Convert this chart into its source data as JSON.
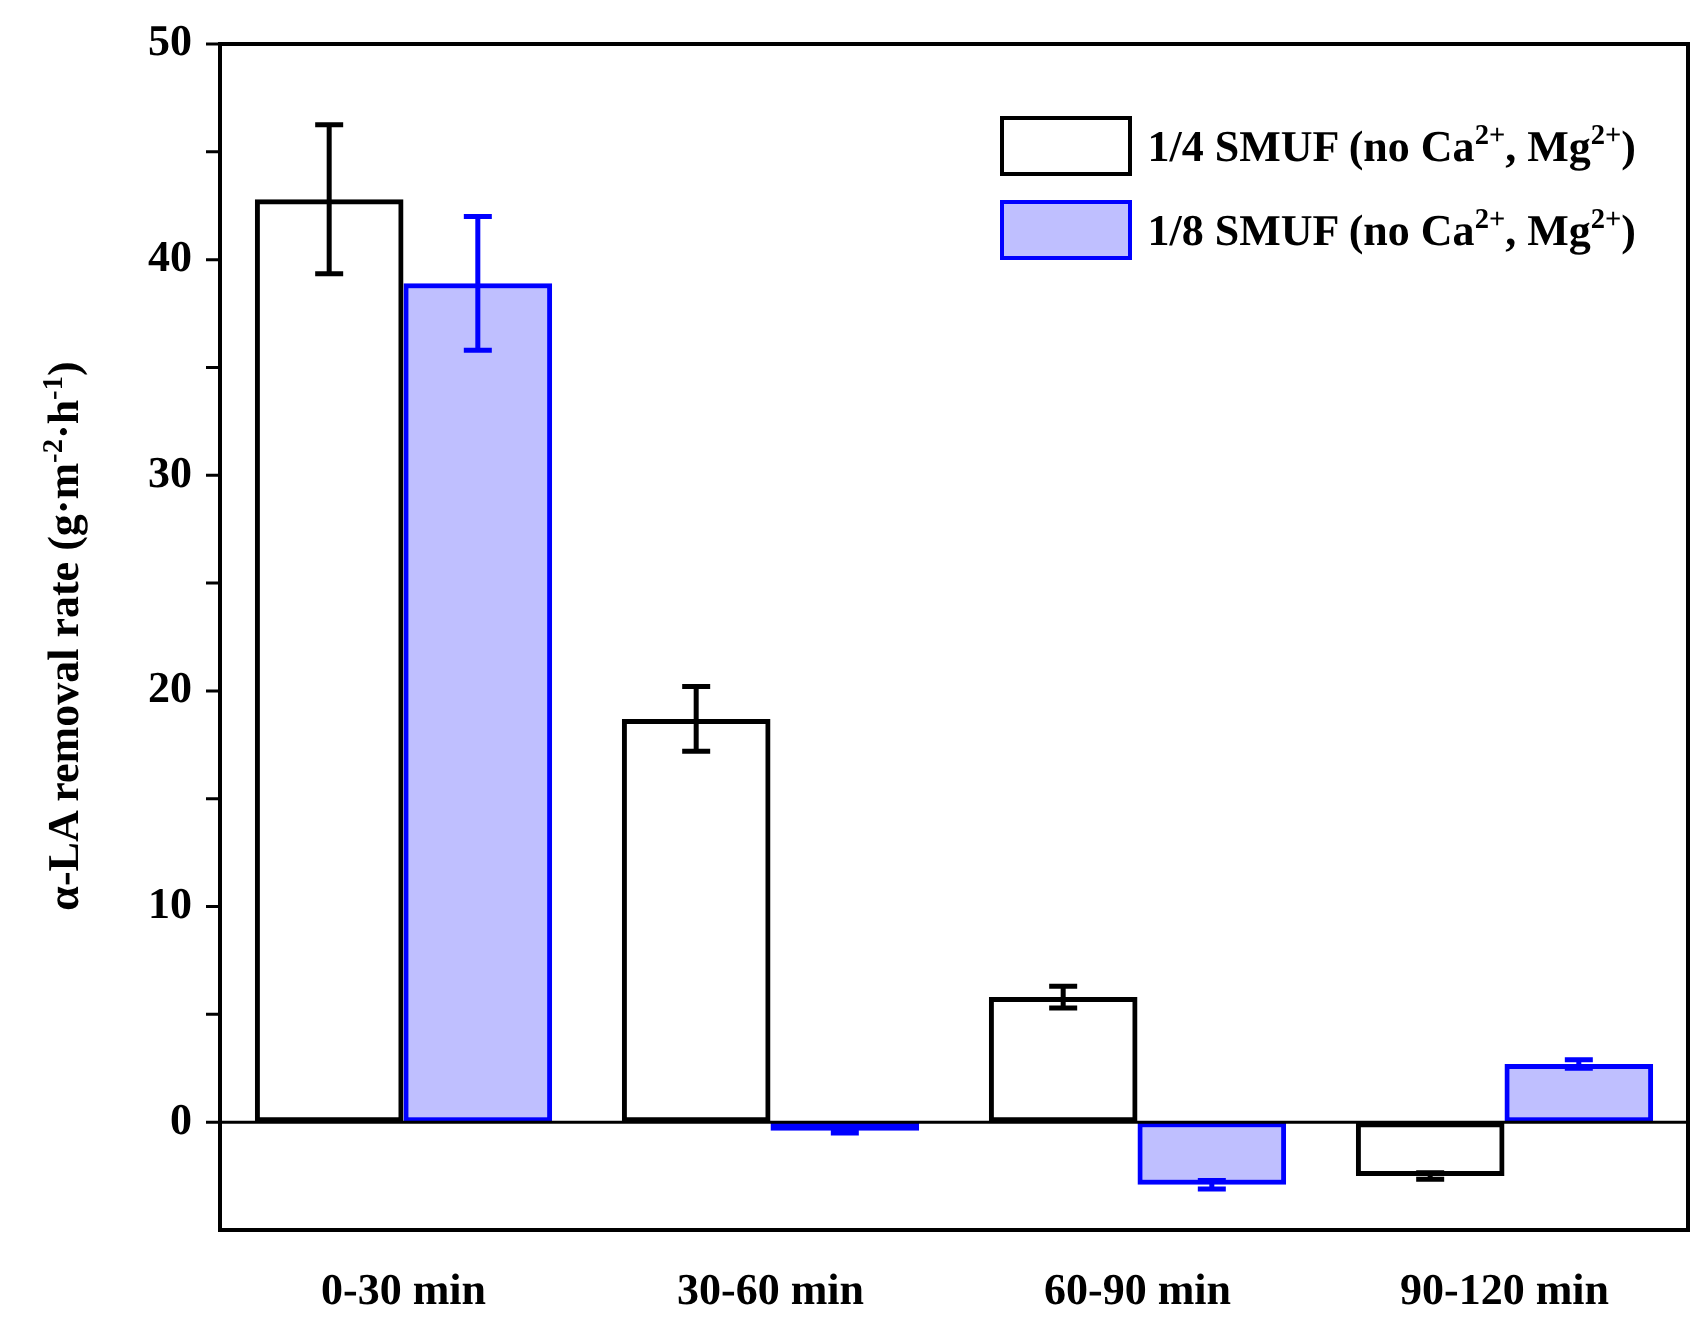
{
  "chart_data": {
    "type": "bar",
    "ylabel": "α-LA removal rate (g·m$^{-2}$·h$^{-1}$)",
    "categories": [
      "0-30 min",
      "30-60 min",
      "60-90 min",
      "90-120 min"
    ],
    "series": [
      {
        "name": "1/4 SMUF (no Ca$^{2+}$, Mg$^{2+}$)",
        "color": "#000000",
        "values": [
          42.8,
          18.7,
          5.8,
          -2.5
        ],
        "errors": [
          3.45,
          1.5,
          0.5,
          0.15
        ]
      },
      {
        "name": "1/8 SMUF (no Ca$^{2+}$, Mg$^{2+}$)",
        "color": "#0000ff",
        "values": [
          38.9,
          -0.4,
          -2.9,
          2.7
        ],
        "errors": [
          3.1,
          0.1,
          0.2,
          0.2
        ]
      }
    ],
    "ylim": [
      -5,
      50
    ],
    "yticks": [
      0,
      {
        "value": 5,
        "label": null
      },
      10,
      {
        "value": 15,
        "label": null
      },
      20,
      {
        "value": 25,
        "label": null
      },
      30,
      {
        "value": 35,
        "label": null
      },
      40,
      {
        "value": 45,
        "label": null
      },
      50
    ],
    "ref_lines": [
      {
        "axis": "y",
        "value": 0,
        "color": "#000000"
      }
    ],
    "legend": "top right"
  }
}
